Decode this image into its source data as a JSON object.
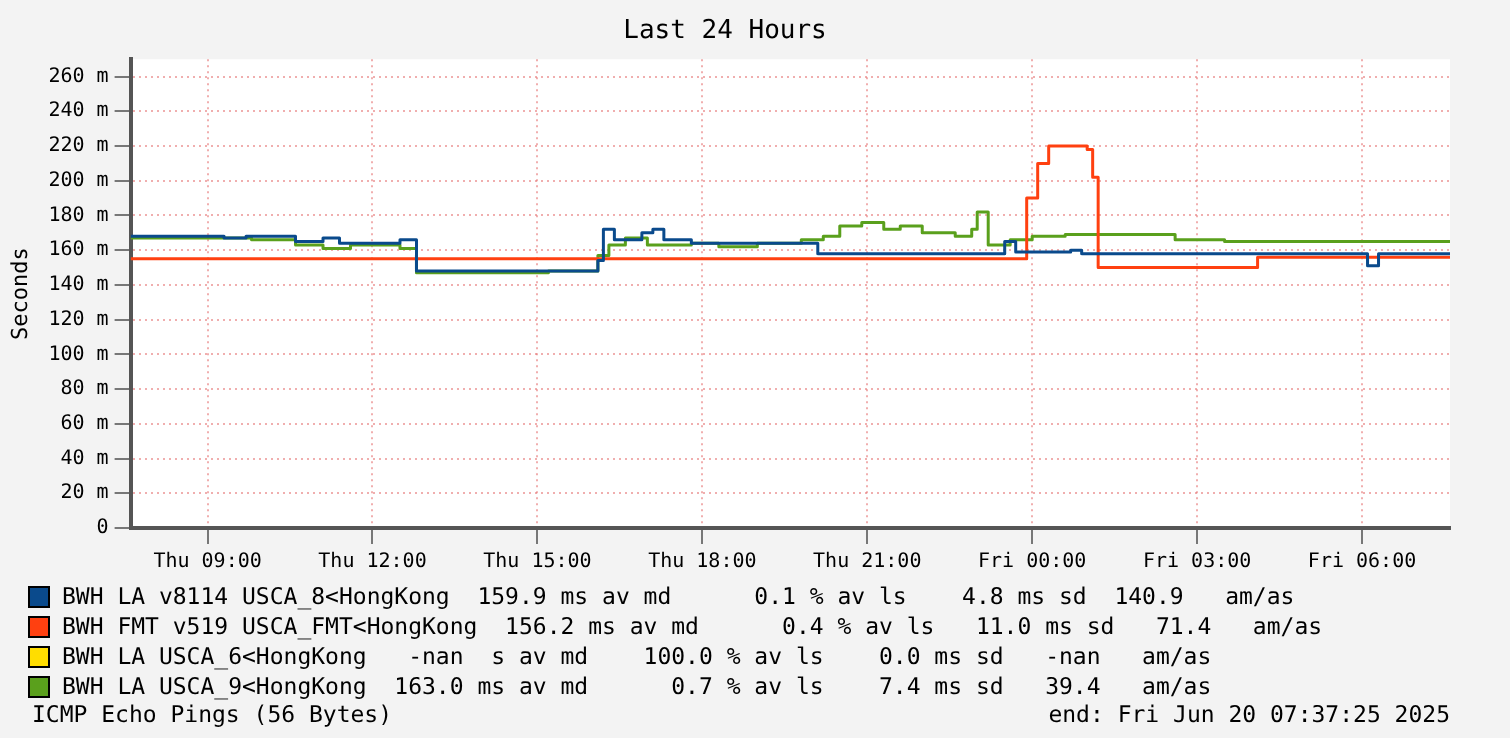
{
  "chart_data": {
    "type": "step",
    "title": "Last 24 Hours",
    "ylabel": "Seconds",
    "xlim": [
      "2025-06-19T07:36",
      "2025-06-20T07:36"
    ],
    "xticks": [
      {
        "value": "2025-06-19T09:00",
        "label": "Thu 09:00"
      },
      {
        "value": "2025-06-19T12:00",
        "label": "Thu 12:00"
      },
      {
        "value": "2025-06-19T15:00",
        "label": "Thu 15:00"
      },
      {
        "value": "2025-06-19T18:00",
        "label": "Thu 18:00"
      },
      {
        "value": "2025-06-19T21:00",
        "label": "Thu 21:00"
      },
      {
        "value": "2025-06-20T00:00",
        "label": "Fri 00:00"
      },
      {
        "value": "2025-06-20T03:00",
        "label": "Fri 03:00"
      },
      {
        "value": "2025-06-20T06:00",
        "label": "Fri 06:00"
      }
    ],
    "ylim": [
      0,
      270
    ],
    "yticks": [
      0,
      {
        "value": 20,
        "label": "20 m"
      },
      {
        "value": 40,
        "label": "40 m"
      },
      {
        "value": 60,
        "label": "60 m"
      },
      {
        "value": 80,
        "label": "80 m"
      },
      {
        "value": 100,
        "label": "100 m"
      },
      {
        "value": 120,
        "label": "120 m"
      },
      {
        "value": 140,
        "label": "140 m"
      },
      {
        "value": 160,
        "label": "160 m"
      },
      {
        "value": 180,
        "label": "180 m"
      },
      {
        "value": 200,
        "label": "200 m"
      },
      {
        "value": 220,
        "label": "220 m"
      },
      {
        "value": 240,
        "label": "240 m"
      },
      {
        "value": 260,
        "label": "260 m"
      }
    ],
    "grid": true,
    "legend": "bottom",
    "marker": "none",
    "line_style": "solid",
    "series": [
      {
        "name": "BWH LA v8114 USCA_8<HongKong  159.9 ms av md      0.1 % av ls    4.8 ms sd  140.9   am/as",
        "color": "#0a4a8c",
        "x": [
          "2025-06-19T07:36",
          "2025-06-19T09:18",
          "2025-06-19T09:42",
          "2025-06-19T10:36",
          "2025-06-19T11:06",
          "2025-06-19T11:24",
          "2025-06-19T12:18",
          "2025-06-19T12:30",
          "2025-06-19T12:48",
          "2025-06-19T16:06",
          "2025-06-19T16:12",
          "2025-06-19T16:24",
          "2025-06-19T16:54",
          "2025-06-19T17:06",
          "2025-06-19T17:18",
          "2025-06-19T17:48",
          "2025-06-19T19:54",
          "2025-06-19T20:06",
          "2025-06-19T23:18",
          "2025-06-19T23:30",
          "2025-06-19T23:42",
          "2025-06-20T00:42",
          "2025-06-20T00:54",
          "2025-06-20T06:00",
          "2025-06-20T06:06",
          "2025-06-20T06:18",
          "2025-06-20T07:36"
        ],
        "values": [
          168,
          167,
          168,
          165,
          167,
          164,
          164,
          166,
          148,
          154,
          172,
          166,
          170,
          172,
          166,
          164,
          164,
          158,
          158,
          165,
          159,
          160,
          158,
          158,
          151,
          158,
          158
        ]
      },
      {
        "name": "BWH FMT v519 USCA_FMT<HongKong  156.2 ms av md      0.4 % av ls   11.0 ms sd   71.4   am/as",
        "color": "#ff4010",
        "x": [
          "2025-06-19T07:36",
          "2025-06-19T23:36",
          "2025-06-19T23:54",
          "2025-06-20T00:06",
          "2025-06-20T00:18",
          "2025-06-20T01:00",
          "2025-06-20T01:06",
          "2025-06-20T01:12",
          "2025-06-20T04:00",
          "2025-06-20T04:06",
          "2025-06-20T07:36"
        ],
        "values": [
          155,
          155,
          190,
          210,
          220,
          218,
          202,
          150,
          150,
          156,
          156
        ]
      },
      {
        "name": "BWH LA USCA_6<HongKong   -nan  s av md    100.0 % av ls    0.0 ms sd   -nan   am/as",
        "color": "#ffdd00"
      },
      {
        "name": "BWH LA USCA_9<HongKong  163.0 ms av md      0.7 % av ls    7.4 ms sd   39.4   am/as",
        "color": "#5aa01c",
        "x": [
          "2025-06-19T07:36",
          "2025-06-19T09:48",
          "2025-06-19T10:36",
          "2025-06-19T11:06",
          "2025-06-19T11:36",
          "2025-06-19T12:30",
          "2025-06-19T12:48",
          "2025-06-19T14:48",
          "2025-06-19T15:12",
          "2025-06-19T16:00",
          "2025-06-19T16:06",
          "2025-06-19T16:18",
          "2025-06-19T16:36",
          "2025-06-19T17:00",
          "2025-06-19T17:48",
          "2025-06-19T18:18",
          "2025-06-19T19:00",
          "2025-06-19T19:48",
          "2025-06-19T20:12",
          "2025-06-19T20:30",
          "2025-06-19T20:54",
          "2025-06-19T21:18",
          "2025-06-19T21:36",
          "2025-06-19T22:00",
          "2025-06-19T22:36",
          "2025-06-19T22:54",
          "2025-06-19T23:00",
          "2025-06-19T23:12",
          "2025-06-19T23:36",
          "2025-06-20T00:00",
          "2025-06-20T00:36",
          "2025-06-20T02:36",
          "2025-06-20T03:30",
          "2025-06-20T07:36"
        ],
        "values": [
          167,
          166,
          163,
          161,
          163,
          161,
          147,
          147,
          148,
          148,
          157,
          163,
          167,
          163,
          164,
          162,
          164,
          166,
          168,
          174,
          176,
          172,
          174,
          170,
          168,
          172,
          182,
          163,
          166,
          168,
          169,
          166,
          165,
          165
        ]
      }
    ],
    "annotations": [
      "ICMP Echo Pings (56 Bytes)",
      "end: Fri Jun 20 07:37:25 2025"
    ]
  }
}
